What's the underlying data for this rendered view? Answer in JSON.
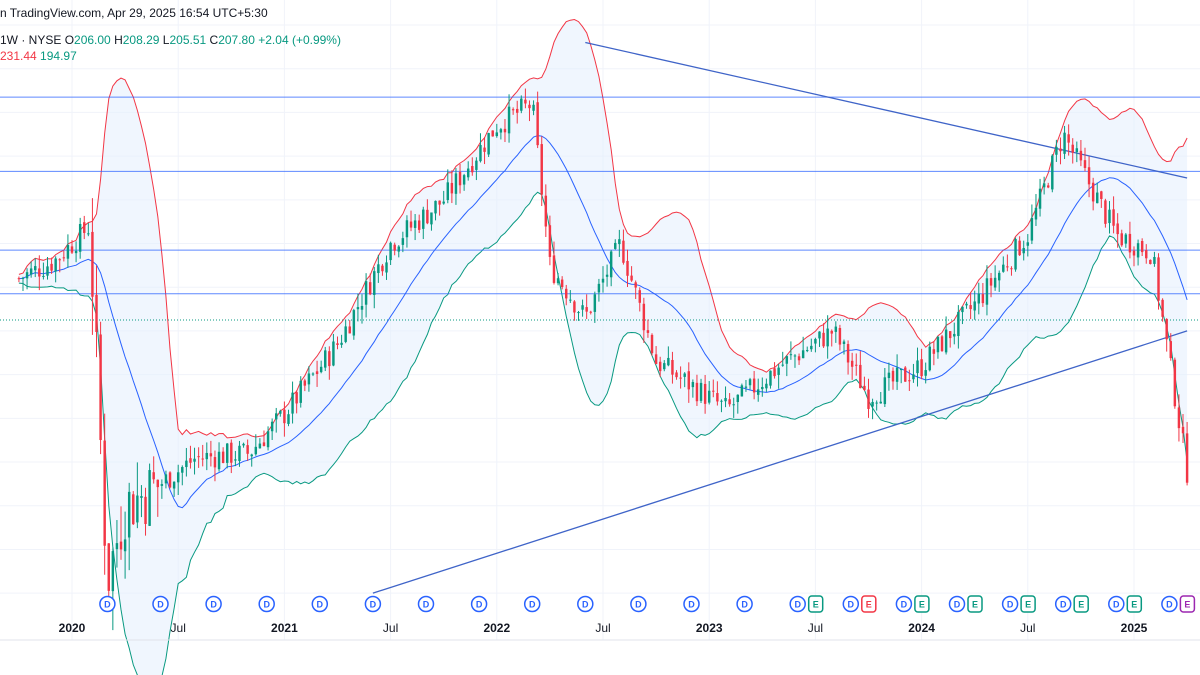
{
  "header": {
    "watermark": "n TradingView.com, Apr 29, 2025 16:54 UTC+5:30",
    "interval_exchange": "1W · NYSE",
    "ohlc": [
      {
        "label": "O",
        "value": "206.00"
      },
      {
        "label": "H",
        "value": "208.29"
      },
      {
        "label": "L",
        "value": "205.51"
      },
      {
        "label": "C",
        "value": "207.80"
      }
    ],
    "change": "+2.04 (+0.99%)",
    "bb_upper": "231.44",
    "bb_lower": "194.97"
  },
  "colors": {
    "up": "#089981",
    "down": "#f23645",
    "basis": "#2962ff",
    "upper_band": "#f23645",
    "lower_band": "#089981",
    "band_fill": "#e3effd",
    "trendline": "#3f64c8",
    "hline": "#2962ff",
    "grid": "#f0f3fa",
    "dividend_badge": "#2962ff",
    "earnings_up": "#089981",
    "earnings_down": "#f23645",
    "split_badge": "#9c27b0"
  },
  "chart_data": {
    "type": "candlestick",
    "interval": "1W",
    "exchange": "NYSE",
    "x_range": [
      "2019-10",
      "2025-04"
    ],
    "y_range_est": [
      175,
      310
    ],
    "grid": true,
    "x_tick_labels": [
      {
        "label": "2020",
        "date": "2020-01",
        "bold": true
      },
      {
        "label": "Jul",
        "date": "2020-07",
        "bold": false
      },
      {
        "label": "2021",
        "date": "2021-01",
        "bold": true
      },
      {
        "label": "Jul",
        "date": "2021-07",
        "bold": false
      },
      {
        "label": "2022",
        "date": "2022-01",
        "bold": true
      },
      {
        "label": "Jul",
        "date": "2022-07",
        "bold": false
      },
      {
        "label": "2023",
        "date": "2023-01",
        "bold": true
      },
      {
        "label": "Jul",
        "date": "2023-07",
        "bold": false
      },
      {
        "label": "2024",
        "date": "2024-01",
        "bold": true
      },
      {
        "label": "Jul",
        "date": "2024-07",
        "bold": false
      },
      {
        "label": "2025",
        "date": "2025-01",
        "bold": true
      }
    ],
    "price_path_est": [
      {
        "date": "2019-10",
        "close": 252
      },
      {
        "date": "2019-12",
        "close": 256
      },
      {
        "date": "2020-02",
        "close": 264
      },
      {
        "date": "2020-03",
        "close": 183
      },
      {
        "date": "2020-04",
        "close": 200
      },
      {
        "date": "2020-06",
        "close": 205
      },
      {
        "date": "2020-08",
        "close": 211
      },
      {
        "date": "2020-11",
        "close": 212
      },
      {
        "date": "2021-01",
        "close": 221
      },
      {
        "date": "2021-04",
        "close": 237
      },
      {
        "date": "2021-07",
        "close": 260
      },
      {
        "date": "2021-10",
        "close": 270
      },
      {
        "date": "2022-01",
        "close": 287
      },
      {
        "date": "2022-03",
        "close": 292
      },
      {
        "date": "2022-04",
        "close": 255
      },
      {
        "date": "2022-06",
        "close": 243
      },
      {
        "date": "2022-08",
        "close": 260
      },
      {
        "date": "2022-10",
        "close": 233
      },
      {
        "date": "2023-02",
        "close": 222
      },
      {
        "date": "2023-05",
        "close": 232
      },
      {
        "date": "2023-08",
        "close": 240
      },
      {
        "date": "2023-10",
        "close": 225
      },
      {
        "date": "2024-01",
        "close": 232
      },
      {
        "date": "2024-04",
        "close": 246
      },
      {
        "date": "2024-07",
        "close": 262
      },
      {
        "date": "2024-09",
        "close": 285
      },
      {
        "date": "2024-12",
        "close": 262
      },
      {
        "date": "2025-02",
        "close": 258
      },
      {
        "date": "2025-04",
        "close": 208
      }
    ],
    "bollinger_bands": {
      "upper": 231.44,
      "lower": 194.97
    },
    "last_bar": {
      "open": 206.0,
      "high": 208.29,
      "low": 205.51,
      "close": 207.8,
      "change": 2.04,
      "change_pct": 0.99
    },
    "horizontal_levels_est": [
      293.5,
      276.5,
      258.5,
      248.5
    ],
    "dotted_level_est": 242.5,
    "trendlines_est": [
      {
        "from": {
          "date": "2021-06",
          "price": 180
        },
        "to": {
          "date": "2025-04",
          "price": 240
        }
      },
      {
        "from": {
          "date": "2022-06",
          "price": 306
        },
        "to": {
          "date": "2025-04",
          "price": 275
        }
      }
    ],
    "events": [
      {
        "date": "2020-03",
        "type": "D"
      },
      {
        "date": "2020-06",
        "type": "D"
      },
      {
        "date": "2020-09",
        "type": "D"
      },
      {
        "date": "2020-12",
        "type": "D"
      },
      {
        "date": "2021-03",
        "type": "D"
      },
      {
        "date": "2021-06",
        "type": "D"
      },
      {
        "date": "2021-09",
        "type": "D"
      },
      {
        "date": "2021-12",
        "type": "D"
      },
      {
        "date": "2022-03",
        "type": "D"
      },
      {
        "date": "2022-06",
        "type": "D"
      },
      {
        "date": "2022-09",
        "type": "D"
      },
      {
        "date": "2022-12",
        "type": "D"
      },
      {
        "date": "2023-03",
        "type": "D"
      },
      {
        "date": "2023-06",
        "type": "D"
      },
      {
        "date": "2023-06",
        "type": "E",
        "result": "up"
      },
      {
        "date": "2023-09",
        "type": "D"
      },
      {
        "date": "2023-09",
        "type": "E",
        "result": "down"
      },
      {
        "date": "2023-12",
        "type": "D"
      },
      {
        "date": "2023-12",
        "type": "E",
        "result": "up"
      },
      {
        "date": "2024-03",
        "type": "D"
      },
      {
        "date": "2024-03",
        "type": "E",
        "result": "up"
      },
      {
        "date": "2024-06",
        "type": "D"
      },
      {
        "date": "2024-06",
        "type": "E",
        "result": "up"
      },
      {
        "date": "2024-09",
        "type": "D"
      },
      {
        "date": "2024-09",
        "type": "E",
        "result": "up"
      },
      {
        "date": "2024-12",
        "type": "D"
      },
      {
        "date": "2024-12",
        "type": "E",
        "result": "up"
      },
      {
        "date": "2025-03",
        "type": "D"
      },
      {
        "date": "2025-03",
        "type": "E",
        "result": "split-marker"
      }
    ]
  }
}
